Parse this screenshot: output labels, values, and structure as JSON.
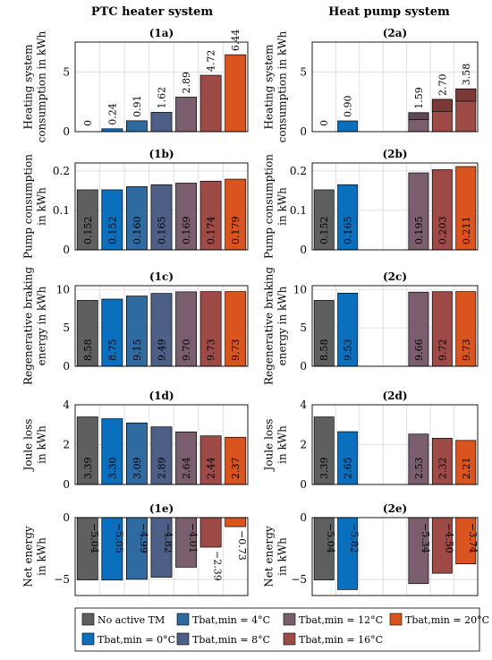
{
  "column_titles": [
    "PTC heater system",
    "Heat pump system"
  ],
  "colors": {
    "none": "#5f5f5f",
    "t0": "#0a6fbd",
    "t4": "#2f6aa1",
    "t8": "#4d5f86",
    "t12": "#7b5e6e",
    "t16": "#9e4a47",
    "t20": "#d9541e"
  },
  "legend": [
    {
      "key": "none",
      "label": "No active TM"
    },
    {
      "key": "t4",
      "label": "Tbat,min = 4°C"
    },
    {
      "key": "t12",
      "label": "Tbat,min = 12°C"
    },
    {
      "key": "t20",
      "label": "Tbat,min = 20°C"
    },
    {
      "key": "t0",
      "label": "Tbat,min = 0°C"
    },
    {
      "key": "t8",
      "label": "Tbat,min = 8°C"
    },
    {
      "key": "t16",
      "label": "Tbat,min = 16°C"
    }
  ],
  "chart_data": [
    {
      "id": "(1a)",
      "type": "bar",
      "ylabel": "Heating system consumption in kWh",
      "ylim": [
        0,
        7.5
      ],
      "yticks": [
        0,
        5
      ],
      "colors": [
        "none",
        "t0",
        "t4",
        "t8",
        "t12",
        "t16",
        "t20"
      ],
      "values": [
        0,
        0.24,
        0.91,
        1.62,
        2.89,
        4.72,
        6.44
      ],
      "labels": [
        "0",
        "0.24",
        "0.91",
        "1.62",
        "2.89",
        "4.72",
        "6.44"
      ]
    },
    {
      "id": "(2a)",
      "type": "bar",
      "ylabel": "Heating system consumption in kWh",
      "ylim": [
        0,
        7.5
      ],
      "yticks": [
        0,
        5
      ],
      "colors": [
        "none",
        "t0",
        null,
        null,
        "t12",
        "t16",
        "t16"
      ],
      "values": [
        0,
        0.9,
        null,
        null,
        1.59,
        2.7,
        3.58
      ],
      "labels": [
        "0",
        "0.90",
        null,
        null,
        "1.59",
        "2.70",
        "3.58"
      ],
      "stack_lower": [
        null,
        null,
        null,
        null,
        1.0,
        1.7,
        2.55
      ]
    },
    {
      "id": "(1b)",
      "type": "bar",
      "ylabel": "Pump consumption in kWh",
      "ylim": [
        0,
        0.22
      ],
      "yticks": [
        0,
        0.1,
        0.2
      ],
      "ytick_labels": [
        "0",
        "0.1",
        "0.2"
      ],
      "colors": [
        "none",
        "t0",
        "t4",
        "t8",
        "t12",
        "t16",
        "t20"
      ],
      "values": [
        0.152,
        0.152,
        0.16,
        0.165,
        0.169,
        0.174,
        0.179
      ],
      "labels": [
        "0.152",
        "0.152",
        "0.160",
        "0.165",
        "0.169",
        "0.174",
        "0.179"
      ]
    },
    {
      "id": "(2b)",
      "type": "bar",
      "ylabel": "Pump consumption in kWh",
      "ylim": [
        0,
        0.22
      ],
      "yticks": [
        0,
        0.1,
        0.2
      ],
      "ytick_labels": [
        "0",
        "0.1",
        "0.2"
      ],
      "colors": [
        "none",
        "t0",
        null,
        null,
        "t12",
        "t16",
        "t20"
      ],
      "values": [
        0.152,
        0.165,
        null,
        null,
        0.195,
        0.203,
        0.211
      ],
      "labels": [
        "0.152",
        "0.165",
        null,
        null,
        "0.195",
        "0.203",
        "0.211"
      ]
    },
    {
      "id": "(1c)",
      "type": "bar",
      "ylabel": "Regenerative braking energy in kWh",
      "ylim": [
        0,
        10.5
      ],
      "yticks": [
        0,
        5,
        10
      ],
      "colors": [
        "none",
        "t0",
        "t4",
        "t8",
        "t12",
        "t16",
        "t20"
      ],
      "values": [
        8.58,
        8.75,
        9.15,
        9.49,
        9.7,
        9.73,
        9.73
      ],
      "labels": [
        "8.58",
        "8.75",
        "9.15",
        "9.49",
        "9.70",
        "9.73",
        "9.73"
      ]
    },
    {
      "id": "(2c)",
      "type": "bar",
      "ylabel": "Regenerative braking energy in kWh",
      "ylim": [
        0,
        10.5
      ],
      "yticks": [
        0,
        5,
        10
      ],
      "colors": [
        "none",
        "t0",
        null,
        null,
        "t12",
        "t16",
        "t20"
      ],
      "values": [
        8.58,
        9.53,
        null,
        null,
        9.66,
        9.72,
        9.73
      ],
      "labels": [
        "8.58",
        "9.53",
        null,
        null,
        "9.66",
        "9.72",
        "9.73"
      ]
    },
    {
      "id": "(1d)",
      "type": "bar",
      "ylabel": "Joule loss in kWh",
      "ylim": [
        0,
        4
      ],
      "yticks": [
        0,
        2,
        4
      ],
      "colors": [
        "none",
        "t0",
        "t4",
        "t8",
        "t12",
        "t16",
        "t20"
      ],
      "values": [
        3.39,
        3.3,
        3.09,
        2.89,
        2.64,
        2.44,
        2.37
      ],
      "labels": [
        "3.39",
        "3.30",
        "3.09",
        "2.89",
        "2.64",
        "2.44",
        "2.37"
      ]
    },
    {
      "id": "(2d)",
      "type": "bar",
      "ylabel": "Joule loss in kWh",
      "ylim": [
        0,
        4
      ],
      "yticks": [
        0,
        2,
        4
      ],
      "colors": [
        "none",
        "t0",
        null,
        null,
        "t12",
        "t16",
        "t20"
      ],
      "values": [
        3.39,
        2.65,
        null,
        null,
        2.53,
        2.32,
        2.21
      ],
      "labels": [
        "3.39",
        "2.65",
        null,
        null,
        "2.53",
        "2.32",
        "2.21"
      ]
    },
    {
      "id": "(1e)",
      "type": "bar",
      "ylabel": "Net energy in kWh",
      "ylim": [
        -6.3,
        0
      ],
      "yticks": [
        0,
        -5
      ],
      "ytick_labels": [
        "0",
        "−5"
      ],
      "colors": [
        "none",
        "t0",
        "t4",
        "t8",
        "t12",
        "t16",
        "t20"
      ],
      "values": [
        -5.04,
        -5.05,
        -4.99,
        -4.82,
        -4.01,
        -2.39,
        -0.73
      ],
      "labels": [
        "−5.04",
        "−5.05",
        "−4.99",
        "−4.82",
        "−4.01",
        "−2.39",
        "−0.73"
      ]
    },
    {
      "id": "(2e)",
      "type": "bar",
      "ylabel": "Net energy in kWh",
      "ylim": [
        -6.3,
        0
      ],
      "yticks": [
        0,
        -5
      ],
      "ytick_labels": [
        "0",
        "−5"
      ],
      "colors": [
        "none",
        "t0",
        null,
        null,
        "t12",
        "t16",
        "t20"
      ],
      "values": [
        -5.04,
        -5.82,
        null,
        null,
        -5.34,
        -4.5,
        -3.74
      ],
      "labels": [
        "−5.04",
        "−5.82",
        null,
        null,
        "−5.34",
        "−4.50",
        "−3.74"
      ]
    }
  ]
}
